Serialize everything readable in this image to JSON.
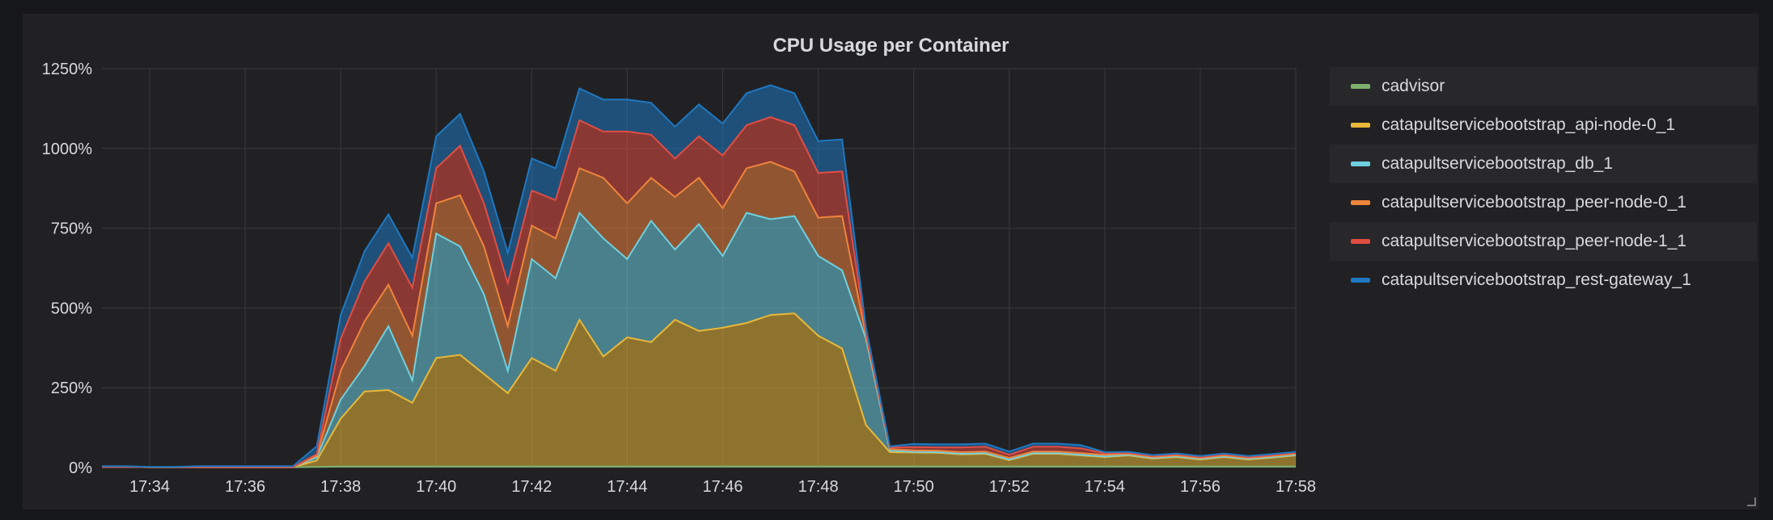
{
  "panel": {
    "title": "CPU Usage per Container"
  },
  "chart_data": {
    "type": "area",
    "stacked": true,
    "title": "CPU Usage per Container",
    "xlabel": "",
    "ylabel": "",
    "x": [
      "17:33",
      "17:33:30",
      "17:34",
      "17:34:30",
      "17:35",
      "17:35:30",
      "17:36",
      "17:36:30",
      "17:37",
      "17:37:30",
      "17:38",
      "17:38:30",
      "17:39",
      "17:39:30",
      "17:40",
      "17:40:30",
      "17:41",
      "17:41:30",
      "17:42",
      "17:42:30",
      "17:43",
      "17:43:30",
      "17:44",
      "17:44:30",
      "17:45",
      "17:45:30",
      "17:46",
      "17:46:30",
      "17:47",
      "17:47:30",
      "17:48",
      "17:48:30",
      "17:49",
      "17:49:30",
      "17:50",
      "17:50:30",
      "17:51",
      "17:51:30",
      "17:52",
      "17:52:30",
      "17:53",
      "17:53:30",
      "17:54",
      "17:54:30",
      "17:55",
      "17:55:30",
      "17:56",
      "17:56:30",
      "17:57",
      "17:57:30",
      "17:58"
    ],
    "x_ticks": [
      "17:34",
      "17:36",
      "17:38",
      "17:40",
      "17:42",
      "17:44",
      "17:46",
      "17:48",
      "17:50",
      "17:52",
      "17:54",
      "17:56",
      "17:58"
    ],
    "y_ticks": [
      "0%",
      "250%",
      "500%",
      "750%",
      "1000%",
      "1250%"
    ],
    "ylim": [
      0,
      1250
    ],
    "grid": true,
    "legend_position": "right",
    "series": [
      {
        "name": "cadvisor",
        "color": "#7eb26d",
        "values": [
          2,
          2,
          1,
          1,
          1,
          1,
          1,
          1,
          1,
          2,
          3,
          3,
          3,
          3,
          3,
          3,
          3,
          3,
          3,
          3,
          3,
          3,
          3,
          3,
          3,
          3,
          3,
          3,
          3,
          3,
          3,
          3,
          3,
          3,
          3,
          3,
          3,
          3,
          3,
          3,
          3,
          3,
          3,
          3,
          3,
          3,
          3,
          3,
          3,
          3,
          3
        ]
      },
      {
        "name": "catapultservicebootstrap_api-node-0_1",
        "color": "#eab839",
        "values": [
          0,
          0,
          0,
          0,
          0,
          0,
          0,
          0,
          0,
          20,
          150,
          235,
          240,
          200,
          340,
          350,
          290,
          230,
          340,
          300,
          460,
          345,
          405,
          390,
          460,
          425,
          435,
          450,
          475,
          480,
          410,
          370,
          130,
          45,
          44,
          43,
          38,
          40,
          20,
          40,
          40,
          35,
          30,
          35,
          25,
          30,
          22,
          30,
          22,
          28,
          35
        ]
      },
      {
        "name": "catapultservicebootstrap_db_1",
        "color": "#6ed0e0",
        "values": [
          0,
          0,
          0,
          0,
          0,
          0,
          0,
          0,
          0,
          10,
          60,
          80,
          200,
          70,
          390,
          340,
          250,
          70,
          310,
          290,
          335,
          370,
          245,
          380,
          220,
          335,
          225,
          345,
          300,
          305,
          250,
          245,
          270,
          5,
          2,
          2,
          2,
          2,
          2,
          2,
          2,
          2,
          2,
          2,
          2,
          2,
          2,
          2,
          2,
          2,
          2
        ]
      },
      {
        "name": "catapultservicebootstrap_peer-node-0_1",
        "color": "#ef843c",
        "values": [
          0,
          0,
          0,
          0,
          0,
          0,
          0,
          0,
          0,
          5,
          90,
          140,
          130,
          140,
          95,
          160,
          150,
          140,
          105,
          125,
          140,
          190,
          175,
          135,
          165,
          145,
          150,
          140,
          180,
          140,
          120,
          170,
          10,
          5,
          5,
          5,
          5,
          5,
          5,
          5,
          5,
          5,
          5,
          3,
          3,
          3,
          3,
          3,
          3,
          3,
          3
        ]
      },
      {
        "name": "catapultservicebootstrap_peer-node-1_1",
        "color": "#e24d42",
        "values": [
          0,
          0,
          0,
          0,
          0,
          0,
          0,
          0,
          0,
          5,
          100,
          125,
          130,
          150,
          110,
          155,
          135,
          135,
          110,
          120,
          150,
          145,
          225,
          135,
          120,
          130,
          165,
          135,
          140,
          145,
          140,
          140,
          10,
          5,
          10,
          10,
          15,
          15,
          10,
          15,
          15,
          15,
          5,
          3,
          3,
          3,
          3,
          3,
          3,
          3,
          3
        ]
      },
      {
        "name": "catapultservicebootstrap_rest-gateway_1",
        "color": "#1f78c1",
        "values": [
          2,
          2,
          1,
          1,
          3,
          3,
          3,
          3,
          3,
          25,
          75,
          95,
          90,
          95,
          100,
          100,
          100,
          95,
          100,
          100,
          100,
          100,
          100,
          100,
          100,
          100,
          100,
          100,
          100,
          100,
          100,
          100,
          15,
          3,
          10,
          10,
          10,
          10,
          10,
          10,
          10,
          10,
          3,
          3,
          3,
          3,
          3,
          3,
          3,
          3,
          3
        ]
      }
    ]
  }
}
